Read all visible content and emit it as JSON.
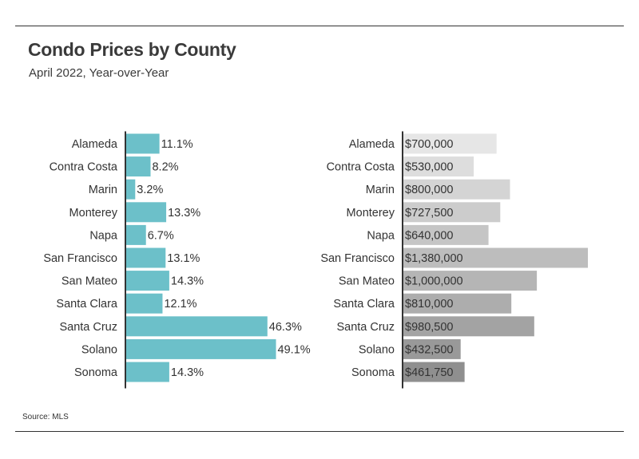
{
  "header": {
    "title": "Condo Prices by County",
    "subtitle": "April 2022, Year-over-Year"
  },
  "footer": {
    "source": "Source: MLS"
  },
  "chart_data": [
    {
      "type": "bar",
      "orientation": "horizontal",
      "categories": [
        "Alameda",
        "Contra Costa",
        "Marin",
        "Monterey",
        "Napa",
        "San Francisco",
        "San Mateo",
        "Santa Clara",
        "Santa Cruz",
        "Solano",
        "Sonoma"
      ],
      "values": [
        11.1,
        8.2,
        3.2,
        13.3,
        6.7,
        13.1,
        14.3,
        12.1,
        46.3,
        49.1,
        14.3
      ],
      "labels": [
        "11.1%",
        "8.2%",
        "3.2%",
        "13.3%",
        "6.7%",
        "13.1%",
        "14.3%",
        "12.1%",
        "46.3%",
        "49.1%",
        "14.3%"
      ],
      "xlim": [
        0,
        50
      ],
      "color": "#6cc0c9",
      "grid": false,
      "legend": "none"
    },
    {
      "type": "bar",
      "orientation": "horizontal",
      "categories": [
        "Alameda",
        "Contra Costa",
        "Marin",
        "Monterey",
        "Napa",
        "San Francisco",
        "San Mateo",
        "Santa Clara",
        "Santa Cruz",
        "Solano",
        "Sonoma"
      ],
      "values": [
        700000,
        530000,
        800000,
        727500,
        640000,
        1380000,
        1000000,
        810000,
        980500,
        432500,
        461750
      ],
      "labels": [
        "$700,000",
        "$530,000",
        "$800,000",
        "$727,500",
        "$640,000",
        "$1,380,000",
        "$1,000,000",
        "$810,000",
        "$980,500",
        "$432,500",
        "$461,750"
      ],
      "xlim": [
        0,
        1380000
      ],
      "colors": [
        "#e6e6e6",
        "#dddddd",
        "#d4d4d4",
        "#cccccc",
        "#c5c5c5",
        "#bdbdbd",
        "#b5b5b5",
        "#adadad",
        "#a3a3a3",
        "#999999",
        "#8f8f8f"
      ],
      "grid": false,
      "legend": "none"
    }
  ]
}
